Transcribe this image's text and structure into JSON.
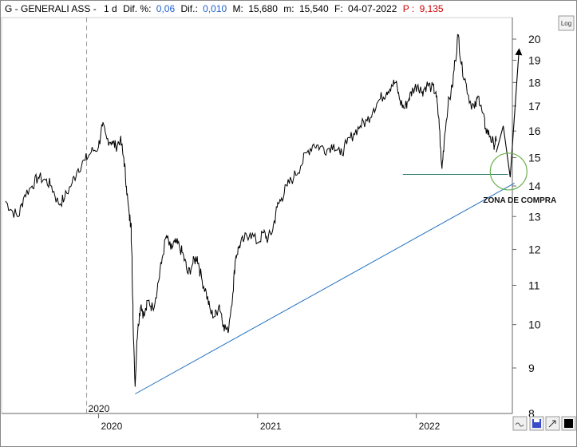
{
  "header": {
    "prefix": "G - GENERALI ASS -",
    "period": "1 d",
    "dif_pct_label": "Dif. %:",
    "dif_pct_value": "0,06",
    "dif_label": "Dif.:",
    "dif_value": "0,010",
    "max_label": "M:",
    "max_value": "15,680",
    "min_label": "m:",
    "min_value": "15,540",
    "date_label": "F:",
    "date_value": "04-07-2022",
    "p_label": "P :",
    "p_value": "9,135"
  },
  "buttons": {
    "log_label": "Log"
  },
  "colors": {
    "price": "#000000",
    "trendline": "#1f6fbf",
    "support": "#2e7d6e",
    "zone_circle": "#6ab04c",
    "header_blue": "#1f5fd0",
    "header_red": "#d00000"
  },
  "chart_data": {
    "type": "line",
    "scale": "log",
    "ylim": [
      8,
      21
    ],
    "yticks": [
      9,
      10,
      11,
      12,
      13,
      14,
      15,
      16,
      17,
      18,
      19,
      20
    ],
    "xticks": [
      {
        "date": "2020-01-01",
        "label": "2020"
      },
      {
        "date": "2021-01-01",
        "label": "2021"
      },
      {
        "date": "2022-01-01",
        "label": "2022"
      }
    ],
    "cursor_label": "2020",
    "grid": true,
    "series": [
      {
        "points": [
          [
            "2019-06-01",
            13.5
          ],
          [
            "2019-06-15",
            13.2
          ],
          [
            "2019-07-01",
            13.0
          ],
          [
            "2019-07-15",
            13.7
          ],
          [
            "2019-08-01",
            14.0
          ],
          [
            "2019-08-15",
            14.3
          ],
          [
            "2019-09-01",
            14.2
          ],
          [
            "2019-09-15",
            14.0
          ],
          [
            "2019-10-01",
            13.4
          ],
          [
            "2019-10-15",
            13.6
          ],
          [
            "2019-11-01",
            14.1
          ],
          [
            "2019-11-15",
            14.6
          ],
          [
            "2019-12-01",
            14.9
          ],
          [
            "2019-12-15",
            15.2
          ],
          [
            "2020-01-01",
            15.4
          ],
          [
            "2020-01-10",
            16.2
          ],
          [
            "2020-01-20",
            15.7
          ],
          [
            "2020-02-01",
            15.6
          ],
          [
            "2020-02-10",
            15.4
          ],
          [
            "2020-02-20",
            15.7
          ],
          [
            "2020-02-28",
            15.0
          ],
          [
            "2020-03-05",
            14.0
          ],
          [
            "2020-03-12",
            13.0
          ],
          [
            "2020-03-16",
            12.8
          ],
          [
            "2020-03-20",
            10.5
          ],
          [
            "2020-03-25",
            8.6
          ],
          [
            "2020-04-01",
            10.0
          ],
          [
            "2020-04-08",
            10.5
          ],
          [
            "2020-04-15",
            10.2
          ],
          [
            "2020-04-25",
            10.6
          ],
          [
            "2020-05-05",
            10.4
          ],
          [
            "2020-05-15",
            10.9
          ],
          [
            "2020-05-25",
            11.6
          ],
          [
            "2020-06-05",
            12.4
          ],
          [
            "2020-06-15",
            12.0
          ],
          [
            "2020-06-25",
            12.2
          ],
          [
            "2020-07-05",
            12.1
          ],
          [
            "2020-07-15",
            11.8
          ],
          [
            "2020-07-25",
            11.3
          ],
          [
            "2020-08-05",
            11.6
          ],
          [
            "2020-08-15",
            11.8
          ],
          [
            "2020-08-25",
            11.2
          ],
          [
            "2020-09-05",
            10.8
          ],
          [
            "2020-09-15",
            10.3
          ],
          [
            "2020-09-25",
            10.2
          ],
          [
            "2020-10-05",
            10.5
          ],
          [
            "2020-10-15",
            10.0
          ],
          [
            "2020-10-25",
            9.8
          ],
          [
            "2020-11-05",
            10.8
          ],
          [
            "2020-11-12",
            11.8
          ],
          [
            "2020-11-20",
            12.1
          ],
          [
            "2020-12-01",
            12.3
          ],
          [
            "2020-12-15",
            12.5
          ],
          [
            "2021-01-01",
            12.2
          ],
          [
            "2021-01-15",
            12.5
          ],
          [
            "2021-01-25",
            12.3
          ],
          [
            "2021-02-05",
            12.6
          ],
          [
            "2021-02-15",
            13.3
          ],
          [
            "2021-02-25",
            13.6
          ],
          [
            "2021-03-10",
            14.0
          ],
          [
            "2021-03-25",
            14.3
          ],
          [
            "2021-04-10",
            14.7
          ],
          [
            "2021-04-25",
            15.2
          ],
          [
            "2021-05-10",
            15.5
          ],
          [
            "2021-05-25",
            15.4
          ],
          [
            "2021-06-10",
            15.3
          ],
          [
            "2021-06-25",
            15.5
          ],
          [
            "2021-07-10",
            15.1
          ],
          [
            "2021-07-25",
            15.5
          ],
          [
            "2021-08-10",
            15.9
          ],
          [
            "2021-08-25",
            16.2
          ],
          [
            "2021-09-10",
            16.4
          ],
          [
            "2021-09-25",
            16.9
          ],
          [
            "2021-10-10",
            17.3
          ],
          [
            "2021-10-25",
            17.6
          ],
          [
            "2021-11-05",
            17.9
          ],
          [
            "2021-11-15",
            18.0
          ],
          [
            "2021-11-25",
            17.2
          ],
          [
            "2021-12-05",
            16.9
          ],
          [
            "2021-12-15",
            17.3
          ],
          [
            "2021-12-25",
            17.7
          ],
          [
            "2022-01-05",
            17.9
          ],
          [
            "2022-01-15",
            17.6
          ],
          [
            "2022-01-25",
            17.9
          ],
          [
            "2022-02-05",
            17.8
          ],
          [
            "2022-02-15",
            17.6
          ],
          [
            "2022-02-22",
            16.5
          ],
          [
            "2022-03-01",
            14.6
          ],
          [
            "2022-03-07",
            15.8
          ],
          [
            "2022-03-15",
            17.0
          ],
          [
            "2022-03-25",
            17.8
          ],
          [
            "2022-04-01",
            19.0
          ],
          [
            "2022-04-08",
            20.2
          ],
          [
            "2022-04-15",
            18.8
          ],
          [
            "2022-04-25",
            18.0
          ],
          [
            "2022-05-05",
            17.2
          ],
          [
            "2022-05-15",
            16.9
          ],
          [
            "2022-05-25",
            17.4
          ],
          [
            "2022-06-01",
            16.8
          ],
          [
            "2022-06-10",
            16.1
          ],
          [
            "2022-06-20",
            15.8
          ],
          [
            "2022-06-28",
            15.5
          ],
          [
            "2022-07-04",
            15.6
          ]
        ]
      }
    ],
    "trendline": [
      [
        "2020-03-25",
        8.45
      ],
      [
        "2022-08-15",
        14.1
      ]
    ],
    "support": [
      [
        "2021-12-01",
        14.4
      ],
      [
        "2022-07-31",
        14.4
      ]
    ],
    "projection": [
      [
        "2022-07-04",
        15.2
      ],
      [
        "2022-07-20",
        16.2
      ],
      [
        "2022-08-05",
        14.3
      ],
      [
        "2022-08-25",
        19.4
      ]
    ],
    "annotations": [
      {
        "text": "ZONA DE COMPRA",
        "date": "2022-08-05",
        "value": 13.55
      },
      {
        "shape": "circle",
        "date": "2022-08-05",
        "value": 14.5
      }
    ]
  }
}
